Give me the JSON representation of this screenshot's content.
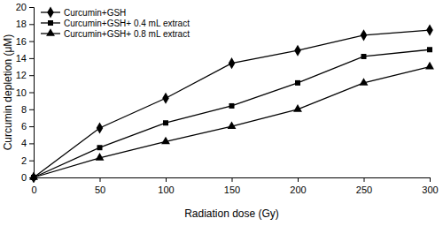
{
  "chart_data": {
    "type": "line",
    "x_label": "Radiation dose (Gy)",
    "y_label": "Curcumin depletion (μM)",
    "x": [
      0,
      50,
      100,
      150,
      200,
      250,
      300
    ],
    "series": [
      {
        "name": "Curcumin+GSH",
        "color": "#000000",
        "marker": "diamond",
        "values": [
          0,
          5.8,
          9.3,
          13.4,
          14.9,
          16.7,
          17.3
        ]
      },
      {
        "name": "Curcumin+GSH+ 0.4 mL extract",
        "color": "#000000",
        "marker": "square",
        "values": [
          0,
          3.5,
          6.4,
          8.4,
          11.1,
          14.2,
          15.0
        ]
      },
      {
        "name": "Curcumin+GSH+ 0.8 mL extract",
        "color": "#000000",
        "marker": "triangle",
        "values": [
          0,
          2.3,
          4.2,
          6.0,
          8.0,
          11.1,
          13.0
        ]
      }
    ],
    "xlim": [
      0,
      300
    ],
    "xticks": [
      0,
      50,
      100,
      150,
      200,
      250,
      300
    ],
    "ylim": [
      0,
      20
    ],
    "yticks": [
      0,
      2,
      4,
      6,
      8,
      10,
      12,
      14,
      16,
      18,
      20
    ],
    "grid": false,
    "legend": "top-left"
  }
}
